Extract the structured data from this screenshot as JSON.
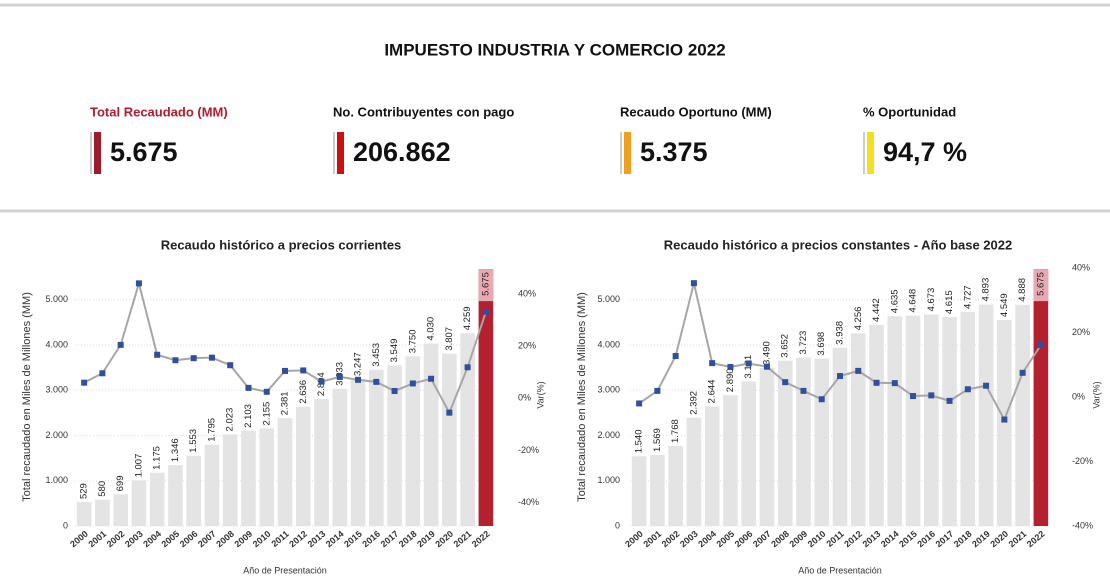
{
  "header": {
    "title": "IMPUESTO INDUSTRIA Y COMERCIO 2022"
  },
  "kpis": [
    {
      "label": "Total Recaudado (MM)",
      "value": "5.675",
      "label_color": "#b01e2e",
      "accent_color": "#9e1b2b"
    },
    {
      "label": "No. Contribuyentes con pago",
      "value": "206.862",
      "label_color": "#111111",
      "accent_color": "#cc1010"
    },
    {
      "label": "Recaudo Oportuno (MM)",
      "value": "5.375",
      "label_color": "#111111",
      "accent_color": "#f0a020"
    },
    {
      "label": "% Oportunidad",
      "value": "94,7 %",
      "label_color": "#111111",
      "accent_color": "#f5e020"
    }
  ],
  "chart_data": [
    {
      "type": "bar",
      "title": "Recaudo histórico a precios corrientes",
      "x_label": "Año de Presentación",
      "y_label": "Total recaudado en Miles de Millones (MM)",
      "y2_label": "Var(%)",
      "categories": [
        "2000",
        "2001",
        "2002",
        "2003",
        "2004",
        "2005",
        "2006",
        "2007",
        "2008",
        "2009",
        "2010",
        "2011",
        "2012",
        "2013",
        "2014",
        "2015",
        "2016",
        "2017",
        "2018",
        "2019",
        "2020",
        "2021",
        "2022"
      ],
      "ylim": [
        0,
        5700
      ],
      "yticks": [
        0,
        {
          "value": 1000,
          "label": "1.000"
        },
        {
          "value": 2000,
          "label": "2.000"
        },
        {
          "value": 3000,
          "label": "3.000"
        },
        {
          "value": 4000,
          "label": "4.000"
        },
        {
          "value": 5000,
          "label": "5.000"
        }
      ],
      "y2lim": [
        -49,
        50
      ],
      "y2ticks": [
        {
          "value": 40,
          "label": "40%"
        },
        {
          "value": 20,
          "label": "20%"
        },
        {
          "value": 0,
          "label": "0%"
        },
        {
          "value": -20,
          "label": "-20%"
        },
        {
          "value": -40,
          "label": "-40%"
        }
      ],
      "grid": true,
      "series": [
        {
          "values": [
            529,
            580,
            699,
            1007,
            1175,
            1346,
            1553,
            1795,
            2023,
            2103,
            2155,
            2381,
            2636,
            2804,
            3033,
            3247,
            3453,
            3549,
            3750,
            4030,
            3807,
            4259,
            5675
          ],
          "value_labels": [
            "529",
            "580",
            "699",
            "1.007",
            "1.175",
            "1.346",
            "1.553",
            "1.795",
            "2.023",
            "2.103",
            "2.155",
            "2.381",
            "2.636",
            "2.804",
            "3.033",
            "3.247",
            "3.453",
            "3.549",
            "3.750",
            "4.030",
            "3.807",
            "4.259",
            "5.675"
          ],
          "colors": [
            "#e4e4e4",
            "#e4e4e4",
            "#e4e4e4",
            "#e4e4e4",
            "#e4e4e4",
            "#e4e4e4",
            "#e4e4e4",
            "#e4e4e4",
            "#e4e4e4",
            "#e4e4e4",
            "#e4e4e4",
            "#e4e4e4",
            "#e4e4e4",
            "#e4e4e4",
            "#e4e4e4",
            "#e4e4e4",
            "#e4e4e4",
            "#e4e4e4",
            "#e4e4e4",
            "#e4e4e4",
            "#e4e4e4",
            "#e4e4e4",
            "#b5202e"
          ]
        },
        {
          "axis": "y2",
          "type": "line",
          "color": "#a6a6a6",
          "marker_color": "#2f4f9f",
          "values": [
            6,
            9.6,
            20.5,
            44.1,
            16.7,
            14.6,
            15.4,
            15.6,
            12.7,
            4.0,
            2.5,
            10.5,
            10.7,
            6.4,
            8.2,
            7.1,
            6.3,
            2.8,
            5.7,
            7.5,
            -5.5,
            11.9,
            33.2
          ]
        }
      ]
    },
    {
      "type": "bar",
      "title": "Recaudo histórico a precios constantes - Año base 2022",
      "x_label": "Año de Presentación",
      "y_label": "Total recaudado en Miles de Millones (MM)",
      "y2_label": "Var(%)",
      "categories": [
        "2000",
        "2001",
        "2002",
        "2003",
        "2004",
        "2005",
        "2006",
        "2007",
        "2008",
        "2009",
        "2010",
        "2011",
        "2012",
        "2013",
        "2014",
        "2015",
        "2016",
        "2017",
        "2018",
        "2019",
        "2020",
        "2021",
        "2022"
      ],
      "ylim": [
        0,
        5700
      ],
      "yticks": [
        0,
        {
          "value": 1000,
          "label": "1.000"
        },
        {
          "value": 2000,
          "label": "2.000"
        },
        {
          "value": 3000,
          "label": "3.000"
        },
        {
          "value": 4000,
          "label": "4.000"
        },
        {
          "value": 5000,
          "label": "5.000"
        }
      ],
      "y2lim": [
        -40,
        40
      ],
      "y2ticks": [
        {
          "value": 40,
          "label": "40%"
        },
        {
          "value": 20,
          "label": "20%"
        },
        {
          "value": 0,
          "label": "0%"
        },
        {
          "value": -20,
          "label": "-20%"
        },
        {
          "value": -40,
          "label": "-40%"
        }
      ],
      "grid": true,
      "series": [
        {
          "values": [
            1540,
            1569,
            1768,
            2392,
            2644,
            2890,
            3191,
            3490,
            3652,
            3723,
            3698,
            3938,
            4256,
            4442,
            4635,
            4648,
            4673,
            4615,
            4727,
            4893,
            4549,
            4888,
            5675
          ],
          "value_labels": [
            "1.540",
            "1.569",
            "1.768",
            "2.392",
            "2.644",
            "2.890",
            "3.191",
            "3.490",
            "3.652",
            "3.723",
            "3.698",
            "3.938",
            "4.256",
            "4.442",
            "4.635",
            "4.648",
            "4.673",
            "4.615",
            "4.727",
            "4.893",
            "4.549",
            "4.888",
            "5.675"
          ],
          "colors": [
            "#e4e4e4",
            "#e4e4e4",
            "#e4e4e4",
            "#e4e4e4",
            "#e4e4e4",
            "#e4e4e4",
            "#e4e4e4",
            "#e4e4e4",
            "#e4e4e4",
            "#e4e4e4",
            "#e4e4e4",
            "#e4e4e4",
            "#e4e4e4",
            "#e4e4e4",
            "#e4e4e4",
            "#e4e4e4",
            "#e4e4e4",
            "#e4e4e4",
            "#e4e4e4",
            "#e4e4e4",
            "#e4e4e4",
            "#e4e4e4",
            "#b5202e"
          ]
        },
        {
          "axis": "y2",
          "type": "line",
          "color": "#a6a6a6",
          "marker_color": "#2f4f9f",
          "values": [
            -2,
            1.9,
            12.7,
            35.3,
            10.5,
            9.3,
            10.4,
            9.4,
            4.6,
            1.9,
            -0.7,
            6.5,
            8.1,
            4.4,
            4.3,
            0.3,
            0.5,
            -1.2,
            2.4,
            3.5,
            -7.0,
            7.5,
            16.1
          ]
        }
      ]
    }
  ]
}
